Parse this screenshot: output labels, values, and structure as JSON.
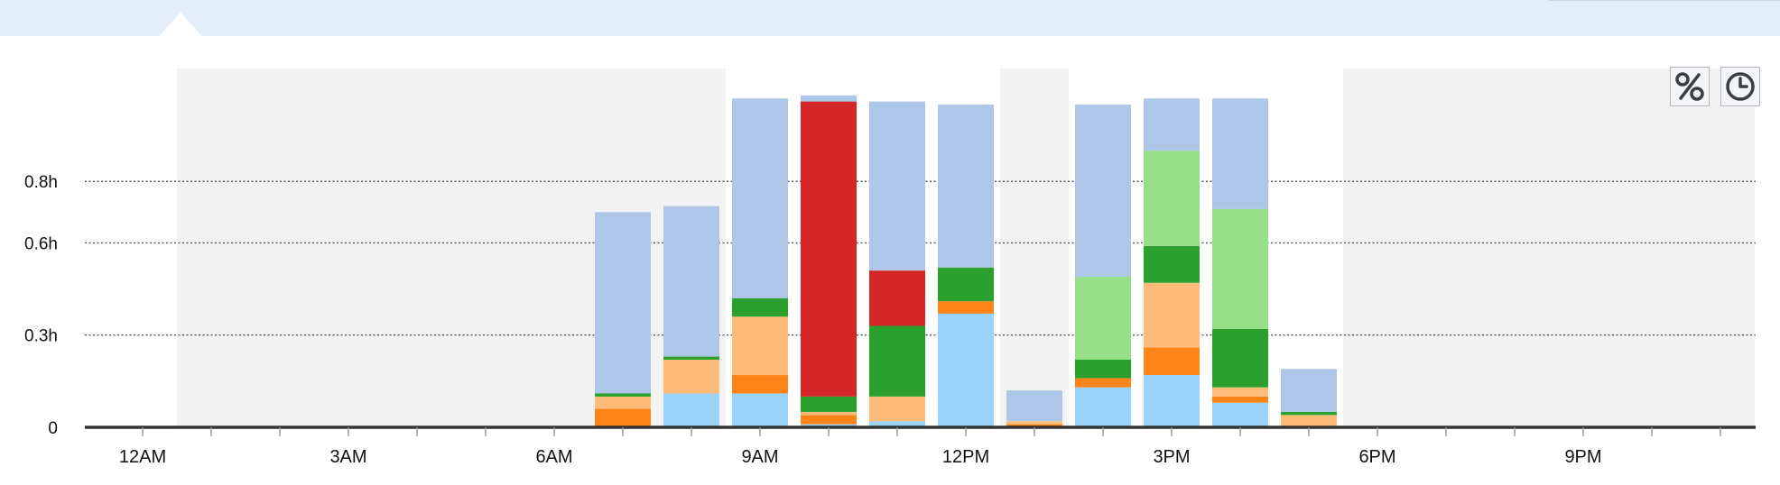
{
  "toolbar": {
    "percent_icon": "percent-icon",
    "clock_icon": "clock-icon"
  },
  "colors": {
    "topbar": "#e2eefa",
    "shade": "#f3f3f3",
    "axis": "#333333",
    "grid": "#555555"
  },
  "chart_data": {
    "type": "bar",
    "stacked": true,
    "title": "",
    "xlabel": "",
    "ylabel": "",
    "ylim": [
      0,
      1.05
    ],
    "y_ticks": [
      {
        "value": 0,
        "label": "0"
      },
      {
        "value": 0.3,
        "label": "0.3h"
      },
      {
        "value": 0.6,
        "label": "0.6h"
      },
      {
        "value": 0.8,
        "label": "0.8h"
      }
    ],
    "x_ticks": [
      "12AM",
      "3AM",
      "6AM",
      "9AM",
      "12PM",
      "3PM",
      "6PM",
      "9PM"
    ],
    "grid": "horizontal dotted",
    "categories": [
      "12AM",
      "1AM",
      "2AM",
      "3AM",
      "4AM",
      "5AM",
      "6AM",
      "7AM",
      "8AM",
      "9AM",
      "10AM",
      "11AM",
      "12PM",
      "1PM",
      "2PM",
      "3PM",
      "4PM",
      "5PM",
      "6PM",
      "7PM",
      "8PM",
      "9PM",
      "10PM",
      "11PM"
    ],
    "shaded_hours": [
      [
        0.5,
        8.5
      ],
      [
        12.5,
        13.5
      ],
      [
        17.5,
        23.5
      ]
    ],
    "series": [
      {
        "color": "#9ad3fb",
        "values": [
          0,
          0,
          0,
          0,
          0,
          0,
          0,
          0,
          0.11,
          0.11,
          0.01,
          0.02,
          0.37,
          0,
          0.13,
          0.17,
          0.08,
          0,
          0,
          0,
          0,
          0,
          0,
          0
        ]
      },
      {
        "color": "#ff8418",
        "values": [
          0,
          0,
          0,
          0,
          0,
          0,
          0,
          0.06,
          0,
          0.06,
          0.03,
          0,
          0.04,
          0.01,
          0.03,
          0.09,
          0.02,
          0,
          0,
          0,
          0,
          0,
          0,
          0
        ]
      },
      {
        "color": "#ffbb78",
        "values": [
          0,
          0,
          0,
          0,
          0,
          0,
          0,
          0.04,
          0.11,
          0.19,
          0.01,
          0.08,
          0,
          0.01,
          0,
          0.21,
          0.03,
          0.04,
          0,
          0,
          0,
          0,
          0,
          0
        ]
      },
      {
        "color": "#2ca02c",
        "values": [
          0,
          0,
          0,
          0,
          0,
          0,
          0,
          0.01,
          0.01,
          0.06,
          0.05,
          0.23,
          0.11,
          0,
          0.06,
          0.12,
          0.19,
          0.01,
          0,
          0,
          0,
          0,
          0,
          0
        ]
      },
      {
        "color": "#98df8a",
        "values": [
          0,
          0,
          0,
          0,
          0,
          0,
          0,
          0,
          0,
          0,
          0,
          0,
          0,
          0,
          0.27,
          0.31,
          0.39,
          0,
          0,
          0,
          0,
          0,
          0,
          0
        ]
      },
      {
        "color": "#d62728",
        "values": [
          0,
          0,
          0,
          0,
          0,
          0,
          0,
          0,
          0,
          0,
          0.96,
          0.18,
          0,
          0,
          0,
          0,
          0,
          0,
          0,
          0,
          0,
          0,
          0,
          0
        ]
      },
      {
        "color": "#aec7e8",
        "values": [
          0,
          0,
          0,
          0,
          0,
          0,
          0,
          0.59,
          0.49,
          0.65,
          0.02,
          0.55,
          0.53,
          0.1,
          0.56,
          0.17,
          0.36,
          0.14,
          0,
          0,
          0,
          0,
          0,
          0
        ]
      }
    ]
  }
}
